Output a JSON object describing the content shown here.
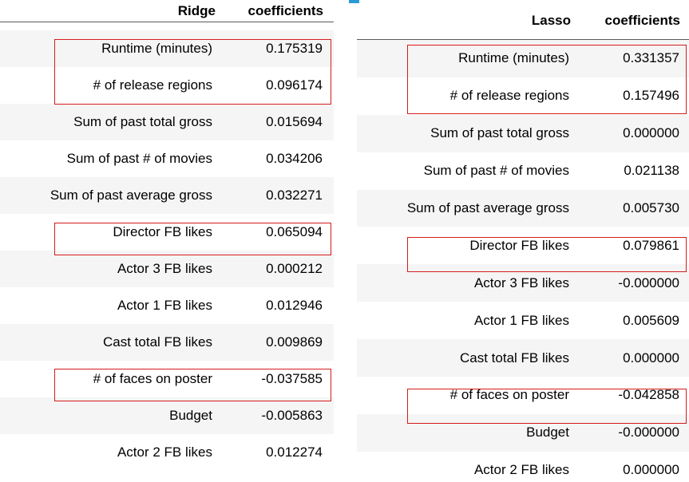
{
  "ridge": {
    "header_name": "Ridge",
    "header_value": "coefficients",
    "rows": [
      {
        "label": "Runtime (minutes)",
        "value": "0.175319"
      },
      {
        "label": "# of release regions",
        "value": "0.096174"
      },
      {
        "label": "Sum of past total gross",
        "value": "0.015694"
      },
      {
        "label": "Sum of past # of movies",
        "value": "0.034206"
      },
      {
        "label": "Sum of past average gross",
        "value": "0.032271"
      },
      {
        "label": "Director FB likes",
        "value": "0.065094"
      },
      {
        "label": "Actor 3 FB likes",
        "value": "0.000212"
      },
      {
        "label": "Actor 1 FB likes",
        "value": "0.012946"
      },
      {
        "label": "Cast total FB likes",
        "value": "0.009869"
      },
      {
        "label": "# of faces on poster",
        "value": "-0.037585"
      },
      {
        "label": "Budget",
        "value": "-0.005863"
      },
      {
        "label": "Actor 2 FB likes",
        "value": "0.012274"
      }
    ]
  },
  "lasso": {
    "header_name": "Lasso",
    "header_value": "coefficients",
    "rows": [
      {
        "label": "Runtime (minutes)",
        "value": "0.331357"
      },
      {
        "label": "# of release regions",
        "value": "0.157496"
      },
      {
        "label": "Sum of past total gross",
        "value": "0.000000"
      },
      {
        "label": "Sum of past # of movies",
        "value": "0.021138"
      },
      {
        "label": "Sum of past average gross",
        "value": "0.005730"
      },
      {
        "label": "Director FB likes",
        "value": "0.079861"
      },
      {
        "label": "Actor 3 FB likes",
        "value": "-0.000000"
      },
      {
        "label": "Actor 1 FB likes",
        "value": "0.005609"
      },
      {
        "label": "Cast total FB likes",
        "value": "0.000000"
      },
      {
        "label": "# of faces on poster",
        "value": "-0.042858"
      },
      {
        "label": "Budget",
        "value": "-0.000000"
      },
      {
        "label": "Actor 2 FB likes",
        "value": "0.000000"
      }
    ]
  },
  "highlight_color": "#d51b1b"
}
